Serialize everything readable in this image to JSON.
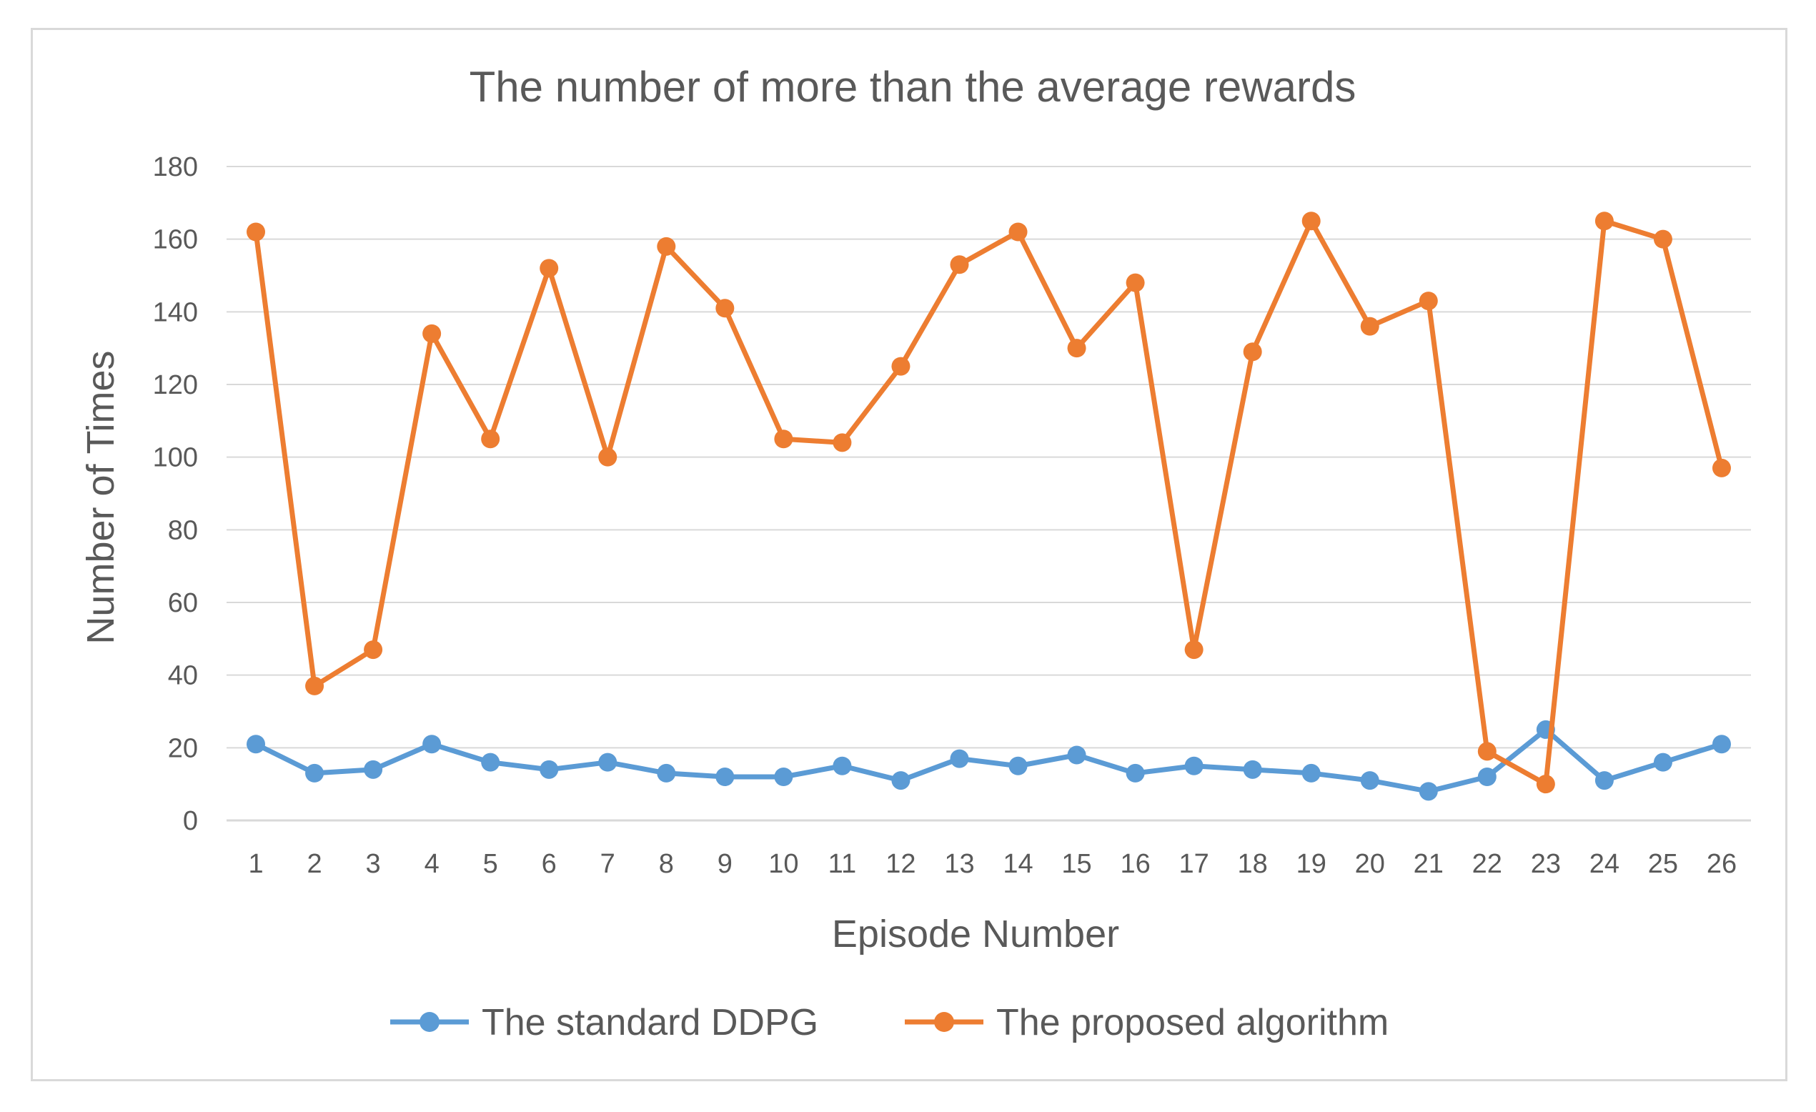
{
  "chart_data": {
    "type": "line",
    "title": "The number of more than the average rewards",
    "xlabel": "Episode Number",
    "ylabel": "Number of Times",
    "ylim": [
      0,
      180
    ],
    "yticks": [
      0,
      20,
      40,
      60,
      80,
      100,
      120,
      140,
      160,
      180
    ],
    "grid": true,
    "legend_position": "bottom",
    "categories": [
      "1",
      "2",
      "3",
      "4",
      "5",
      "6",
      "7",
      "8",
      "9",
      "10",
      "11",
      "12",
      "13",
      "14",
      "15",
      "16",
      "17",
      "18",
      "19",
      "20",
      "21",
      "22",
      "23",
      "24",
      "25",
      "26"
    ],
    "series": [
      {
        "name": "The standard DDPG",
        "color": "#5b9bd5",
        "values": [
          21,
          13,
          14,
          21,
          16,
          14,
          16,
          13,
          12,
          12,
          15,
          11,
          17,
          15,
          18,
          13,
          15,
          14,
          13,
          11,
          8,
          12,
          25,
          11,
          16,
          21
        ]
      },
      {
        "name": "The proposed algorithm",
        "color": "#ed7d31",
        "values": [
          162,
          37,
          47,
          134,
          105,
          152,
          100,
          158,
          141,
          105,
          104,
          125,
          153,
          162,
          130,
          148,
          47,
          129,
          165,
          136,
          143,
          19,
          10,
          165,
          160,
          97
        ]
      }
    ]
  }
}
